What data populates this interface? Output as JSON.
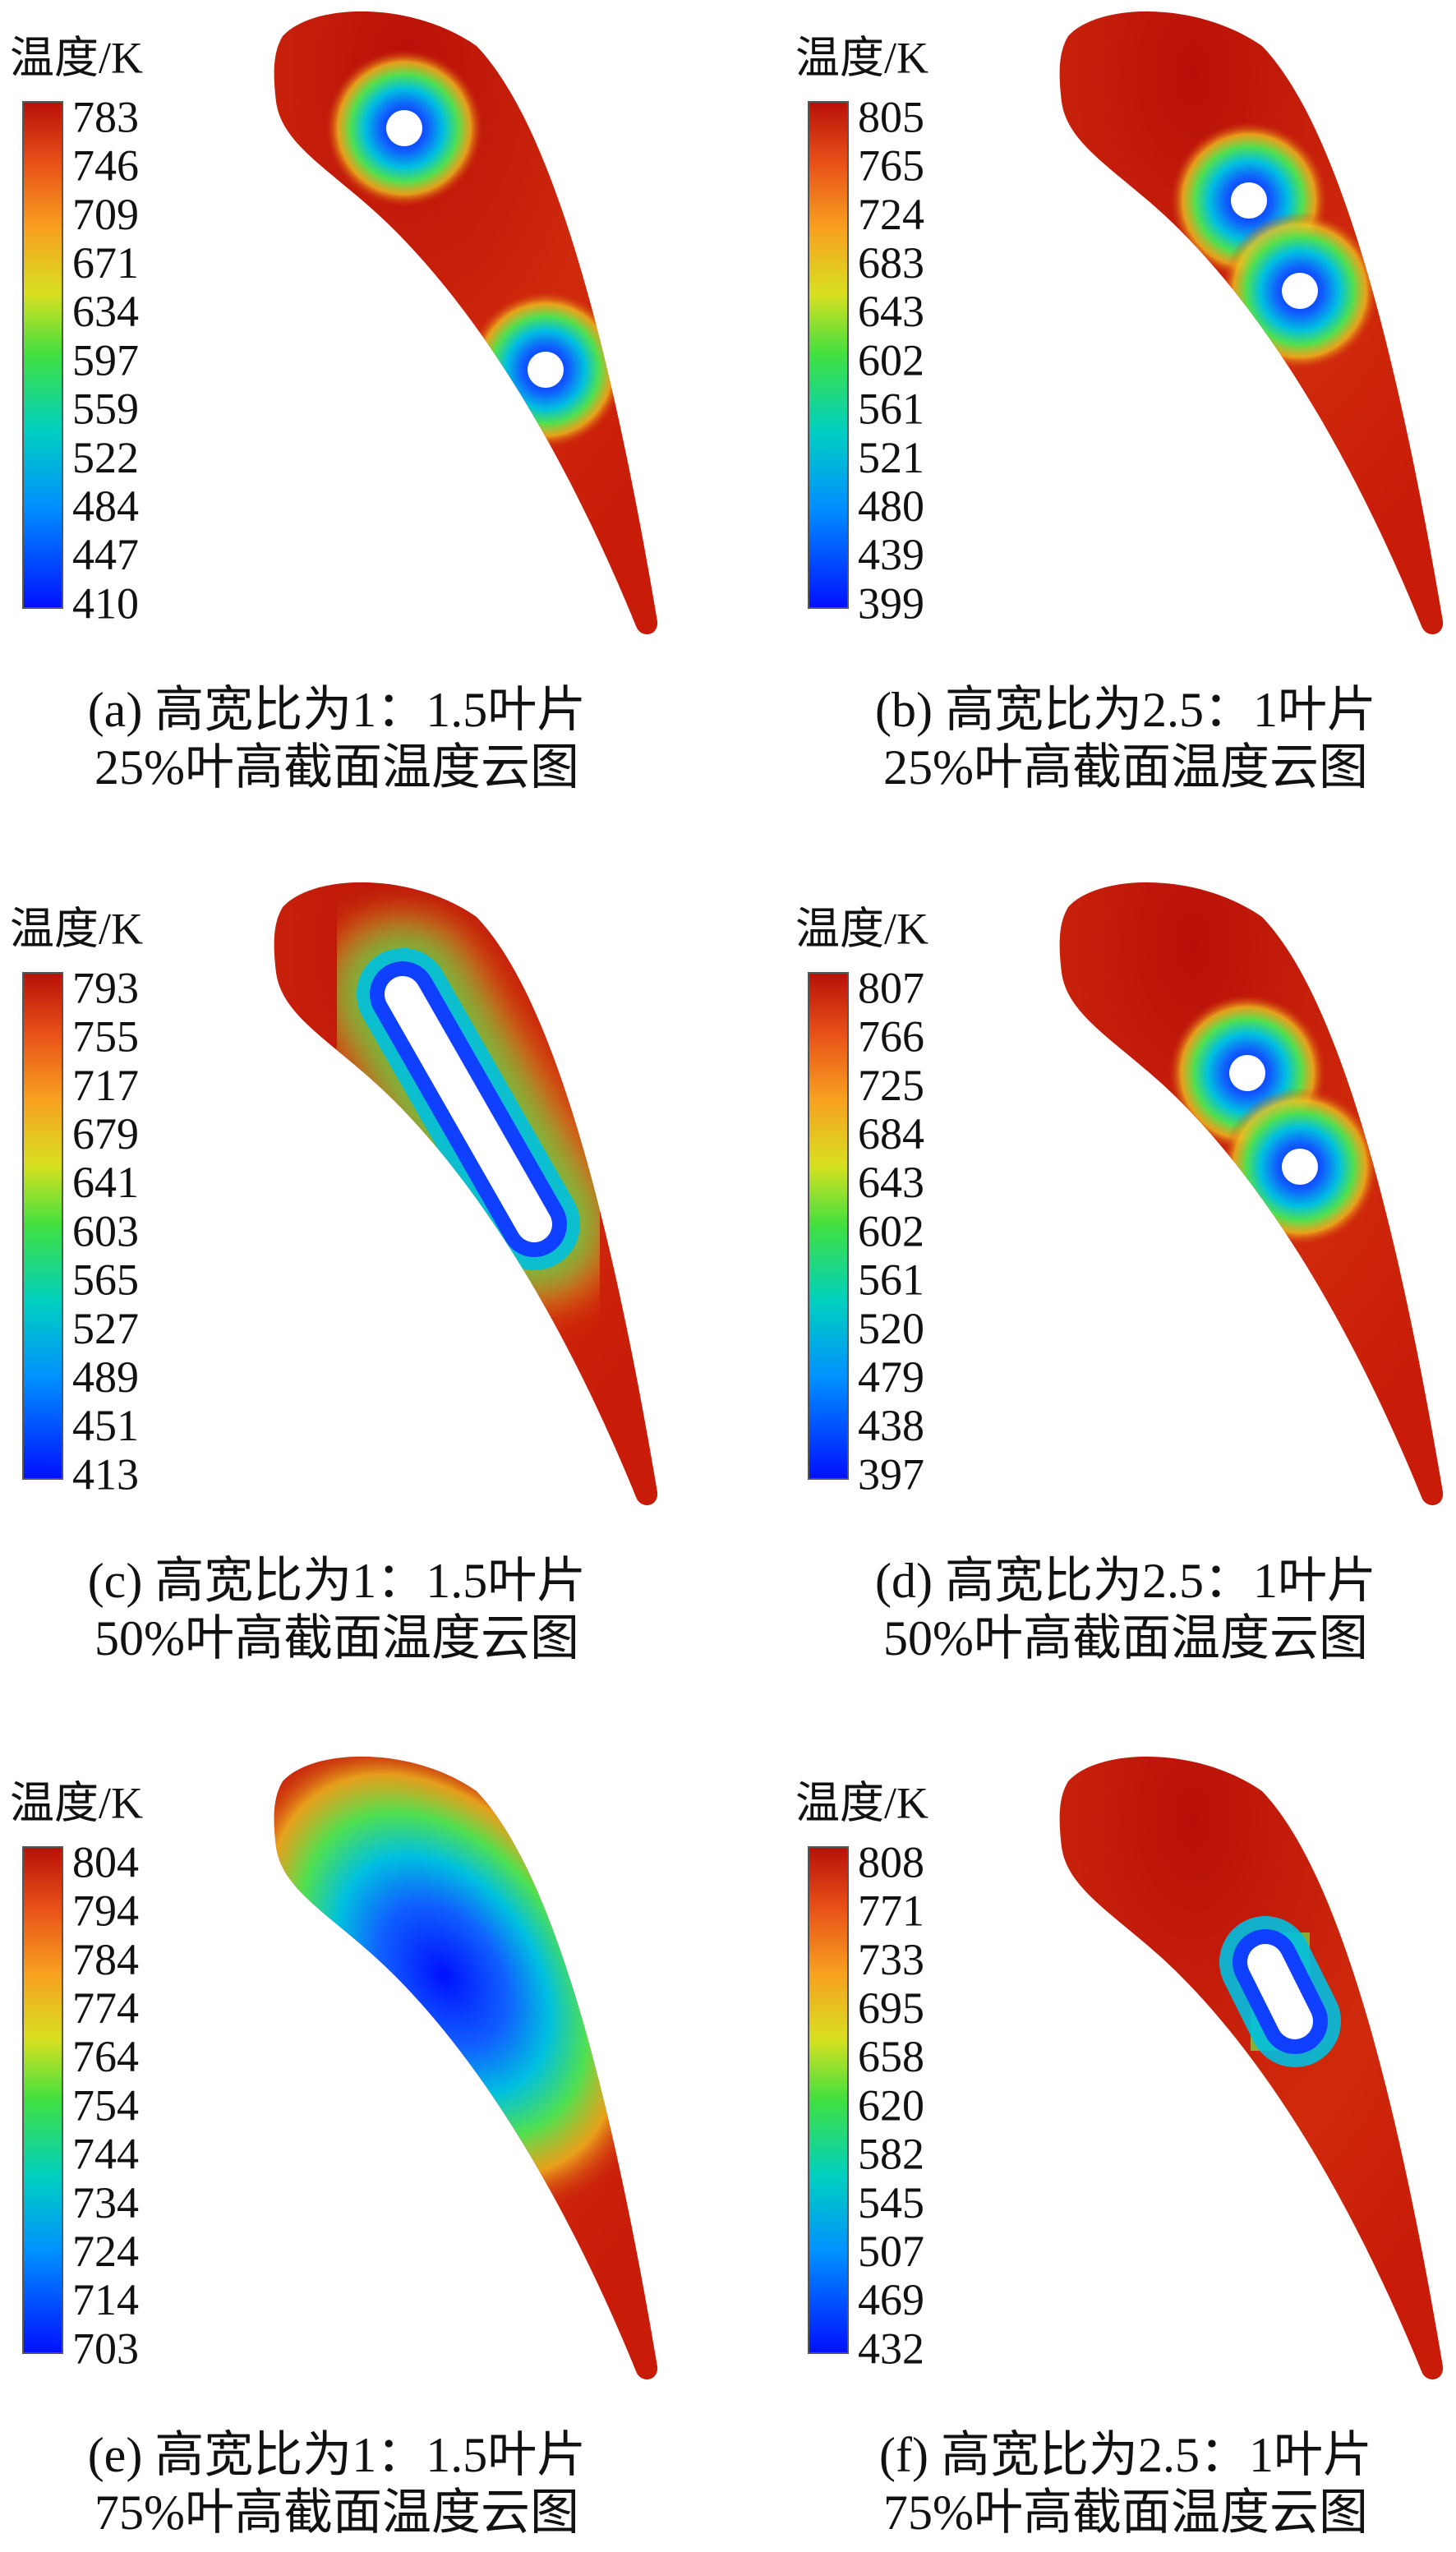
{
  "panels": [
    {
      "colorbar": {
        "title": "温度/K",
        "ticks": [
          "783",
          "746",
          "709",
          "671",
          "634",
          "597",
          "559",
          "522",
          "484",
          "447",
          "410"
        ]
      },
      "caption": [
        "(a) 高宽比为1：1.5叶片",
        "25%叶高截面温度云图"
      ]
    },
    {
      "colorbar": {
        "title": "温度/K",
        "ticks": [
          "805",
          "765",
          "724",
          "683",
          "643",
          "602",
          "561",
          "521",
          "480",
          "439",
          "399"
        ]
      },
      "caption": [
        "(b) 高宽比为2.5：1叶片",
        "25%叶高截面温度云图"
      ]
    },
    {
      "colorbar": {
        "title": "温度/K",
        "ticks": [
          "793",
          "755",
          "717",
          "679",
          "641",
          "603",
          "565",
          "527",
          "489",
          "451",
          "413"
        ]
      },
      "caption": [
        "(c) 高宽比为1：1.5叶片",
        "50%叶高截面温度云图"
      ]
    },
    {
      "colorbar": {
        "title": "温度/K",
        "ticks": [
          "807",
          "766",
          "725",
          "684",
          "643",
          "602",
          "561",
          "520",
          "479",
          "438",
          "397"
        ]
      },
      "caption": [
        "(d) 高宽比为2.5：1叶片",
        "50%叶高截面温度云图"
      ]
    },
    {
      "colorbar": {
        "title": "温度/K",
        "ticks": [
          "804",
          "794",
          "784",
          "774",
          "764",
          "754",
          "744",
          "734",
          "724",
          "714",
          "703"
        ]
      },
      "caption": [
        "(e) 高宽比为1：1.5叶片",
        "75%叶高截面温度云图"
      ]
    },
    {
      "colorbar": {
        "title": "温度/K",
        "ticks": [
          "808",
          "771",
          "733",
          "695",
          "658",
          "620",
          "582",
          "545",
          "507",
          "469",
          "432"
        ]
      },
      "caption": [
        "(f) 高宽比为2.5：1叶片",
        "75%叶高截面温度云图"
      ]
    }
  ]
}
